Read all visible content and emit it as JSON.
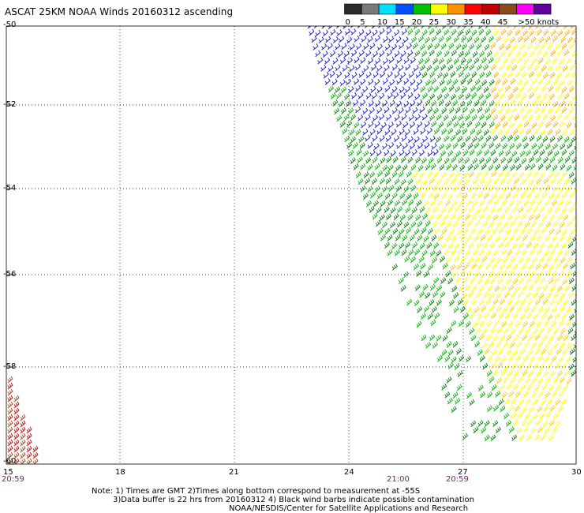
{
  "title": "ASCAT 25KM NOAA Winds 20160312 ascending",
  "colorbar": {
    "labels": [
      "0",
      "5",
      "10",
      "15",
      "20",
      "25",
      "30",
      "35",
      "40",
      "45",
      ">50 knots"
    ],
    "colors": [
      "#2a2a2a",
      "#7a7a7a",
      "#00e0ff",
      "#0050ff",
      "#00c000",
      "#ffff00",
      "#ff9000",
      "#ff0000",
      "#c00000",
      "#8b4a18",
      "#ff00ff",
      "#6000a0"
    ]
  },
  "axes": {
    "lat_labels": [
      "-50",
      "-52",
      "-54",
      "-56",
      "-58",
      "-60"
    ],
    "lon_labels": [
      "15",
      "18",
      "21",
      "24",
      "27",
      "30"
    ]
  },
  "times": [
    "20:59",
    "21:00",
    "20:59"
  ],
  "notes": {
    "line1": "Note: 1) Times are GMT 2)Times along bottom correspond to measurement at -55S",
    "line2": "3)Data buffer is 22 hrs from 20160312 4) Black wind barbs indicate possible contamination",
    "line3": "NOAA/NESDIS/Center for Satellite Applications and Research"
  },
  "map_data": {
    "type": "wind-barb-map",
    "lat_range": [
      -60,
      -50
    ],
    "lon_range": [
      15,
      30
    ],
    "swaths": [
      {
        "region": "northeast",
        "speed_bands_knots": [
          "10-15",
          "15-20",
          "20-25",
          "25-30"
        ],
        "colors": [
          "#0000dd",
          "#00b000",
          "#ffff00",
          "#ffb000"
        ]
      },
      {
        "region": "southwest corner",
        "speed_bands_knots": [
          "30-40"
        ],
        "colors": [
          "#c00000",
          "#8b4a18"
        ]
      }
    ]
  }
}
